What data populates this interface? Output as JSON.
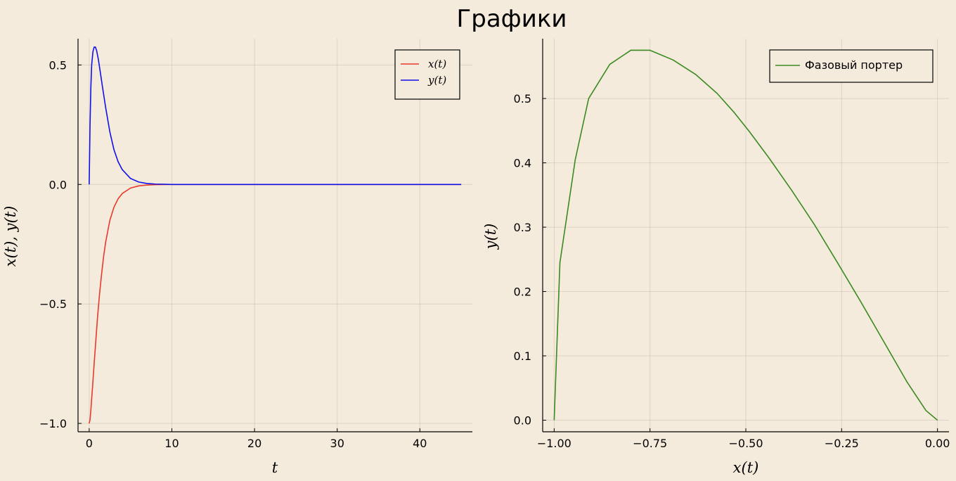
{
  "title": "Графики",
  "chart_data": [
    {
      "type": "line",
      "xlabel": "t",
      "ylabel": "x(t), y(t)",
      "xlim": [
        -1.35,
        46.35
      ],
      "ylim": [
        -1.035,
        0.61
      ],
      "xticks": [
        0,
        10,
        20,
        30,
        40
      ],
      "xtick_labels": [
        "0",
        "10",
        "20",
        "30",
        "40"
      ],
      "yticks": [
        -1.0,
        -0.5,
        0.0,
        0.5
      ],
      "ytick_labels": [
        "−1.0",
        "−0.5",
        "0.0",
        "0.5"
      ],
      "grid": true,
      "legend_position": "top-right",
      "series": [
        {
          "name": "x(t)",
          "color": "#e8392a",
          "x": [
            0,
            0.1,
            0.2,
            0.4,
            0.6,
            0.8,
            1.0,
            1.25,
            1.5,
            1.75,
            2.0,
            2.5,
            3.0,
            3.5,
            4.0,
            5.0,
            6.0,
            7.0,
            8.0,
            10.0,
            15.0,
            20.0,
            30.0,
            40.0,
            45.0
          ],
          "y": [
            -1.0,
            -0.985,
            -0.945,
            -0.85,
            -0.75,
            -0.655,
            -0.56,
            -0.46,
            -0.375,
            -0.3,
            -0.24,
            -0.15,
            -0.095,
            -0.06,
            -0.038,
            -0.015,
            -0.006,
            -0.0025,
            -0.001,
            0,
            0,
            0,
            0,
            0,
            0
          ]
        },
        {
          "name": "y(t)",
          "color": "#1010e8",
          "x": [
            0,
            0.1,
            0.2,
            0.3,
            0.45,
            0.6,
            0.75,
            0.9,
            1.1,
            1.3,
            1.6,
            2.0,
            2.5,
            3.0,
            3.5,
            4.0,
            5.0,
            6.0,
            7.0,
            8.0,
            10.0,
            15.0,
            20.0,
            30.0,
            40.0,
            45.0
          ],
          "y": [
            0,
            0.245,
            0.405,
            0.5,
            0.555,
            0.575,
            0.575,
            0.56,
            0.525,
            0.48,
            0.41,
            0.32,
            0.22,
            0.145,
            0.095,
            0.062,
            0.025,
            0.01,
            0.004,
            0.0016,
            0,
            0,
            0,
            0,
            0,
            0
          ]
        }
      ]
    },
    {
      "type": "line",
      "xlabel": "x(t)",
      "ylabel": "y(t)",
      "xlim": [
        -1.03,
        0.03
      ],
      "ylim": [
        -0.018,
        0.593
      ],
      "xticks": [
        -1.0,
        -0.75,
        -0.5,
        -0.25,
        0.0
      ],
      "xtick_labels": [
        "−1.00",
        "−0.75",
        "−0.50",
        "−0.25",
        "0.00"
      ],
      "yticks": [
        0.0,
        0.1,
        0.2,
        0.3,
        0.4,
        0.5
      ],
      "ytick_labels": [
        "0.0",
        "0.1",
        "0.2",
        "0.3",
        "0.4",
        "0.5"
      ],
      "grid": true,
      "legend_position": "top-right",
      "series": [
        {
          "name": "Фазовый портер",
          "color": "#3a8a20",
          "x": [
            -1.0,
            -0.985,
            -0.945,
            -0.91,
            -0.855,
            -0.8,
            -0.75,
            -0.69,
            -0.63,
            -0.575,
            -0.53,
            -0.49,
            -0.44,
            -0.38,
            -0.32,
            -0.26,
            -0.2,
            -0.14,
            -0.08,
            -0.03,
            0.0
          ],
          "y": [
            0.0,
            0.245,
            0.405,
            0.5,
            0.553,
            0.575,
            0.575,
            0.56,
            0.537,
            0.508,
            0.478,
            0.448,
            0.408,
            0.357,
            0.303,
            0.244,
            0.184,
            0.122,
            0.06,
            0.015,
            0.0
          ]
        }
      ]
    }
  ]
}
